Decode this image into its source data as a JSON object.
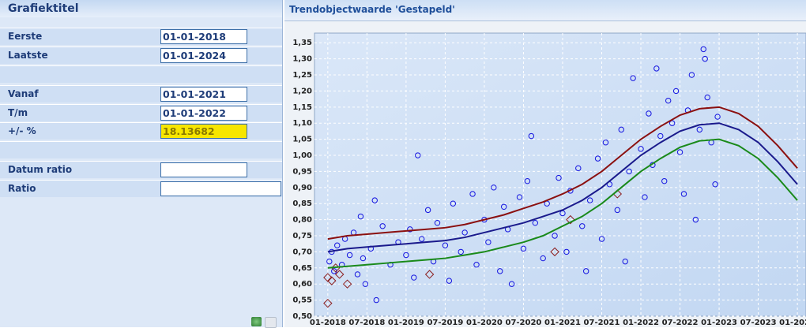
{
  "form": {
    "title": "Grafiektitel",
    "rows": [
      {
        "label": "Eerste",
        "value": "01-01-2018"
      },
      {
        "label": "Laatste",
        "value": "01-01-2024"
      },
      {
        "label": "Vanaf",
        "value": "01-01-2021"
      },
      {
        "label": "T/m",
        "value": "01-01-2022"
      },
      {
        "label": "+/- %",
        "value": "18.13682"
      },
      {
        "label": "Datum ratio"
      },
      {
        "label": "Ratio"
      }
    ]
  },
  "chart_data": {
    "type": "scatter",
    "title": "Trendobjectwaarde 'Gestapeld'",
    "xlim": [
      2017.83,
      2024.11
    ],
    "ylim": [
      0.5,
      1.38
    ],
    "grid": true,
    "xticks": [
      {
        "value": 2018,
        "label": "01-2018"
      },
      {
        "value": 2018.5,
        "label": "07-2018"
      },
      {
        "value": 2019,
        "label": "01-2019"
      },
      {
        "value": 2019.5,
        "label": "07-2019"
      },
      {
        "value": 2020,
        "label": "01-2020"
      },
      {
        "value": 2020.5,
        "label": "07-2020"
      },
      {
        "value": 2021,
        "label": "01-2021"
      },
      {
        "value": 2021.5,
        "label": "07-2021"
      },
      {
        "value": 2022,
        "label": "01-2022"
      },
      {
        "value": 2022.5,
        "label": "07-2022"
      },
      {
        "value": 2023,
        "label": "01-2023"
      },
      {
        "value": 2023.5,
        "label": "07-2023"
      },
      {
        "value": 2024,
        "label": "01-2024"
      }
    ],
    "yticks": [
      {
        "value": 0.5,
        "label": "0,50"
      },
      {
        "value": 0.55,
        "label": "0,55"
      },
      {
        "value": 0.6,
        "label": "0,60"
      },
      {
        "value": 0.65,
        "label": "0,65"
      },
      {
        "value": 0.7,
        "label": "0,70"
      },
      {
        "value": 0.75,
        "label": "0,75"
      },
      {
        "value": 0.8,
        "label": "0,80"
      },
      {
        "value": 0.85,
        "label": "0,85"
      },
      {
        "value": 0.9,
        "label": "0,90"
      },
      {
        "value": 0.95,
        "label": "0,95"
      },
      {
        "value": 1.0,
        "label": "1,00"
      },
      {
        "value": 1.05,
        "label": "1,05"
      },
      {
        "value": 1.1,
        "label": "1,10"
      },
      {
        "value": 1.15,
        "label": "1,15"
      },
      {
        "value": 1.2,
        "label": "1,20"
      },
      {
        "value": 1.25,
        "label": "1,25"
      },
      {
        "value": 1.3,
        "label": "1,30"
      },
      {
        "value": 1.35,
        "label": "1,35"
      }
    ],
    "series": [
      {
        "type": "scatter",
        "marker": "circle",
        "color": "#1515e0",
        "x": [
          2018.02,
          2018.05,
          2018.08,
          2018.12,
          2018.18,
          2018.22,
          2018.28,
          2018.33,
          2018.38,
          2018.42,
          2018.45,
          2018.48,
          2018.55,
          2018.6,
          2018.62,
          2018.7,
          2018.8,
          2018.9,
          2019.0,
          2019.05,
          2019.1,
          2019.15,
          2019.2,
          2019.28,
          2019.35,
          2019.4,
          2019.5,
          2019.55,
          2019.6,
          2019.7,
          2019.75,
          2019.85,
          2019.9,
          2020.0,
          2020.05,
          2020.12,
          2020.2,
          2020.25,
          2020.3,
          2020.35,
          2020.45,
          2020.5,
          2020.55,
          2020.6,
          2020.65,
          2020.75,
          2020.8,
          2020.9,
          2020.95,
          2021.0,
          2021.05,
          2021.1,
          2021.2,
          2021.25,
          2021.3,
          2021.35,
          2021.45,
          2021.5,
          2021.55,
          2021.6,
          2021.7,
          2021.75,
          2021.8,
          2021.85,
          2021.9,
          2022.0,
          2022.05,
          2022.1,
          2022.15,
          2022.2,
          2022.25,
          2022.3,
          2022.35,
          2022.4,
          2022.45,
          2022.5,
          2022.55,
          2022.6,
          2022.65,
          2022.7,
          2022.75,
          2022.8,
          2022.82,
          2022.85,
          2022.9,
          2022.95,
          2022.98
        ],
        "values": [
          0.67,
          0.7,
          0.64,
          0.72,
          0.66,
          0.74,
          0.69,
          0.76,
          0.63,
          0.81,
          0.68,
          0.6,
          0.71,
          0.86,
          0.55,
          0.78,
          0.66,
          0.73,
          0.69,
          0.77,
          0.62,
          1.0,
          0.74,
          0.83,
          0.67,
          0.79,
          0.72,
          0.61,
          0.85,
          0.7,
          0.76,
          0.88,
          0.66,
          0.8,
          0.73,
          0.9,
          0.64,
          0.84,
          0.77,
          0.6,
          0.87,
          0.71,
          0.92,
          1.06,
          0.79,
          0.68,
          0.85,
          0.75,
          0.93,
          0.82,
          0.7,
          0.89,
          0.96,
          0.78,
          0.64,
          0.86,
          0.99,
          0.74,
          1.04,
          0.91,
          0.83,
          1.08,
          0.67,
          0.95,
          1.24,
          1.02,
          0.87,
          1.13,
          0.97,
          1.27,
          1.06,
          0.92,
          1.17,
          1.1,
          1.2,
          1.01,
          0.88,
          1.14,
          1.25,
          0.8,
          1.08,
          1.33,
          1.3,
          1.18,
          1.04,
          0.91,
          1.12
        ]
      },
      {
        "type": "scatter",
        "marker": "diamond",
        "color": "#8b1c1c",
        "x": [
          2018.0,
          2018.05,
          2018.1,
          2018.15,
          2018.25,
          2018.0,
          2019.3,
          2020.9,
          2021.1,
          2021.7
        ],
        "values": [
          0.62,
          0.61,
          0.65,
          0.63,
          0.6,
          0.54,
          0.63,
          0.7,
          0.8,
          0.88
        ]
      },
      {
        "type": "line",
        "color": "#8b1010",
        "x": [
          2018,
          2018.25,
          2018.5,
          2018.75,
          2019,
          2019.25,
          2019.5,
          2019.75,
          2020,
          2020.25,
          2020.5,
          2020.75,
          2021,
          2021.25,
          2021.5,
          2021.75,
          2022,
          2022.25,
          2022.5,
          2022.75,
          2023,
          2023.25,
          2023.5,
          2023.75,
          2024
        ],
        "values": [
          0.74,
          0.75,
          0.755,
          0.76,
          0.765,
          0.77,
          0.775,
          0.785,
          0.8,
          0.815,
          0.835,
          0.855,
          0.88,
          0.91,
          0.95,
          1.0,
          1.05,
          1.09,
          1.125,
          1.145,
          1.15,
          1.13,
          1.09,
          1.03,
          0.96
        ]
      },
      {
        "type": "line",
        "color": "#1a1a8c",
        "x": [
          2018,
          2018.25,
          2018.5,
          2018.75,
          2019,
          2019.25,
          2019.5,
          2019.75,
          2020,
          2020.25,
          2020.5,
          2020.75,
          2021,
          2021.25,
          2021.5,
          2021.75,
          2022,
          2022.25,
          2022.5,
          2022.75,
          2023,
          2023.25,
          2023.5,
          2023.75,
          2024
        ],
        "values": [
          0.7,
          0.71,
          0.715,
          0.72,
          0.725,
          0.73,
          0.735,
          0.745,
          0.76,
          0.775,
          0.79,
          0.81,
          0.83,
          0.86,
          0.9,
          0.95,
          1.0,
          1.04,
          1.075,
          1.095,
          1.1,
          1.08,
          1.04,
          0.98,
          0.91
        ]
      },
      {
        "type": "line",
        "color": "#1a8a1a",
        "x": [
          2018,
          2018.25,
          2018.5,
          2018.75,
          2019,
          2019.25,
          2019.5,
          2019.75,
          2020,
          2020.25,
          2020.5,
          2020.75,
          2021,
          2021.25,
          2021.5,
          2021.75,
          2022,
          2022.25,
          2022.5,
          2022.75,
          2023,
          2023.25,
          2023.5,
          2023.75,
          2024
        ],
        "values": [
          0.65,
          0.655,
          0.66,
          0.665,
          0.67,
          0.675,
          0.68,
          0.69,
          0.7,
          0.715,
          0.73,
          0.75,
          0.78,
          0.81,
          0.85,
          0.9,
          0.95,
          0.99,
          1.025,
          1.045,
          1.05,
          1.03,
          0.99,
          0.93,
          0.86
        ]
      }
    ]
  }
}
